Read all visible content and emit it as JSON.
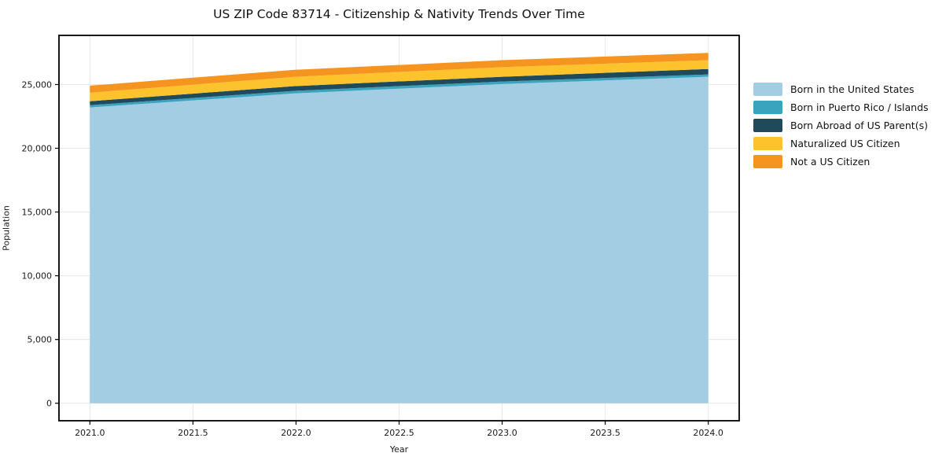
{
  "chart_data": {
    "type": "area",
    "stacked": true,
    "title": "US ZIP Code 83714 - Citizenship & Nativity Trends Over Time",
    "xlabel": "Year",
    "ylabel": "Population",
    "x": [
      2021,
      2022,
      2023,
      2024
    ],
    "series": [
      {
        "name": "Born in the United States",
        "color": "#a3cde3",
        "values": [
          23200,
          24310,
          25040,
          25610
        ]
      },
      {
        "name": "Born in Puerto Rico / Islands",
        "color": "#3aa3bd",
        "values": [
          180,
          200,
          200,
          180
        ]
      },
      {
        "name": "Born Abroad of US Parent(s)",
        "color": "#1f4a5c",
        "values": [
          310,
          370,
          370,
          430
        ]
      },
      {
        "name": "Naturalized US Citizen",
        "color": "#fcc32d",
        "values": [
          670,
          730,
          750,
          690
        ]
      },
      {
        "name": "Not a US Citizen",
        "color": "#f69420",
        "values": [
          550,
          550,
          550,
          570
        ]
      }
    ],
    "xlim": [
      2020.85,
      2024.15
    ],
    "ylim": [
      -1374,
      28854
    ],
    "x_ticks": {
      "values": [
        2021.0,
        2021.5,
        2022.0,
        2022.5,
        2023.0,
        2023.5,
        2024.0
      ],
      "labels": [
        "2021.0",
        "2021.5",
        "2022.0",
        "2022.5",
        "2023.0",
        "2023.5",
        "2024.0"
      ]
    },
    "y_ticks": {
      "values": [
        0,
        5000,
        10000,
        15000,
        20000,
        25000
      ],
      "labels": [
        "0",
        "5,000",
        "10,000",
        "15,000",
        "20,000",
        "25,000"
      ]
    },
    "grid": true,
    "legend_position": "right of plot, upper area",
    "colors": {
      "grid": "#e7e7e7",
      "frame": "#000000",
      "text": "#1a1a1a",
      "background": "#ffffff"
    }
  }
}
